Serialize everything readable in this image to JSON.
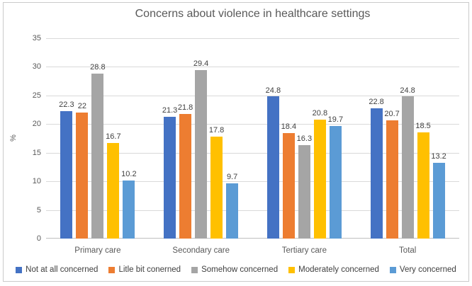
{
  "chart_data": {
    "type": "bar",
    "title": "Concerns about violence in healthcare settings",
    "xlabel": "",
    "ylabel": "%",
    "categories": [
      "Primary care",
      "Secondary care",
      "Tertiary care",
      "Total"
    ],
    "series": [
      {
        "name": "Not at all concerned",
        "color": "#4472C4",
        "values": [
          22.3,
          21.3,
          24.8,
          22.8
        ]
      },
      {
        "name": "Litle bit conerned",
        "color": "#ED7D31",
        "values": [
          22,
          21.8,
          18.4,
          20.7
        ]
      },
      {
        "name": "Somehow concerned",
        "color": "#A5A5A5",
        "values": [
          28.8,
          29.4,
          16.3,
          24.8
        ]
      },
      {
        "name": "Moderately concerned",
        "color": "#FFC000",
        "values": [
          16.7,
          17.8,
          20.8,
          18.5
        ]
      },
      {
        "name": "Very concerned",
        "color": "#5B9BD5",
        "values": [
          10.2,
          9.7,
          19.7,
          13.2
        ]
      }
    ],
    "ylim": [
      0,
      35
    ],
    "yticks": [
      0,
      5,
      10,
      15,
      20,
      25,
      30,
      35
    ],
    "grid": true,
    "data_labels": true,
    "legend_position": "bottom",
    "colors": {
      "title_text": "#595959",
      "axis_text": "#595959",
      "label_text": "#404040",
      "gridline": "#d9d9d9",
      "axis_line": "#bfbfbf",
      "frame_border": "#cbcbcb"
    }
  }
}
